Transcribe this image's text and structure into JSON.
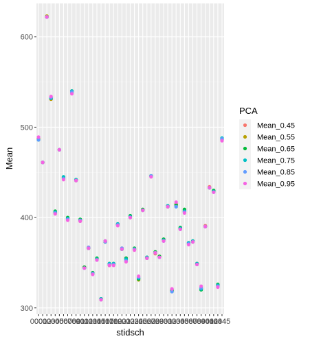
{
  "chart_data": {
    "type": "scatter",
    "xlabel": "stidsch",
    "ylabel": "Mean",
    "y_ticks": [
      300,
      400,
      500,
      600
    ],
    "ylim": [
      293,
      637
    ],
    "x_tick_labels": [
      "0001",
      "0002",
      "0003",
      "0004",
      "0005",
      "0006",
      "0007",
      "0008",
      "0009",
      "0010",
      "0011",
      "0012",
      "0013",
      "0014",
      "0015",
      "0016",
      "0017",
      "0018",
      "0019",
      "0020",
      "0021",
      "0022",
      "0023",
      "0024",
      "0025",
      "0026",
      "0027",
      "0028",
      "0029",
      "0030",
      "0031",
      "0032",
      "0033",
      "0034",
      "0035",
      "0036",
      "0037",
      "0038",
      "0039",
      "0040",
      "0041",
      "0042",
      "0043",
      "0044",
      "0045"
    ],
    "legend": {
      "title": "PCA",
      "position": "right"
    },
    "series": [
      {
        "name": "Mean_0.45",
        "color": "#F8766D",
        "values": [
          487,
          461,
          622,
          531,
          405,
          475,
          444,
          398,
          540,
          441,
          396,
          345,
          367,
          338,
          354,
          310,
          374,
          348,
          349,
          393,
          366,
          355,
          401,
          364,
          333,
          408,
          356,
          446,
          360,
          357,
          376,
          413,
          319,
          415,
          388,
          407,
          372,
          374,
          349,
          322,
          391,
          434,
          429,
          325,
          487
        ]
      },
      {
        "name": "Mean_0.55",
        "color": "#B79F00",
        "values": [
          487,
          461,
          623,
          531,
          406,
          475,
          444,
          399,
          539,
          441,
          397,
          345,
          366,
          338,
          354,
          309,
          373,
          347,
          348,
          392,
          365,
          354,
          400,
          365,
          331,
          408,
          355,
          446,
          361,
          357,
          375,
          412,
          320,
          414,
          388,
          408,
          371,
          373,
          349,
          321,
          390,
          433,
          430,
          325,
          487
        ]
      },
      {
        "name": "Mean_0.65",
        "color": "#00BA38",
        "values": [
          486,
          461,
          622,
          532,
          407,
          475,
          445,
          400,
          540,
          442,
          398,
          345,
          366,
          339,
          355,
          310,
          373,
          349,
          349,
          392,
          365,
          355,
          402,
          366,
          332,
          409,
          356,
          446,
          362,
          357,
          376,
          412,
          319,
          414,
          389,
          409,
          372,
          374,
          349,
          320,
          390,
          433,
          430,
          326,
          487
        ]
      },
      {
        "name": "Mean_0.75",
        "color": "#00BFC4",
        "values": [
          486,
          461,
          622,
          532,
          406,
          475,
          445,
          399,
          540,
          442,
          397,
          344,
          366,
          338,
          354,
          310,
          374,
          349,
          349,
          393,
          365,
          354,
          401,
          365,
          333,
          408,
          356,
          446,
          361,
          356,
          375,
          413,
          318,
          412,
          388,
          407,
          372,
          374,
          349,
          321,
          390,
          433,
          429,
          325,
          488
        ]
      },
      {
        "name": "Mean_0.85",
        "color": "#619CFF",
        "values": [
          486,
          461,
          622,
          533,
          405,
          475,
          443,
          398,
          539,
          441,
          397,
          344,
          367,
          338,
          353,
          309,
          373,
          348,
          348,
          392,
          366,
          352,
          400,
          365,
          334,
          408,
          355,
          446,
          361,
          356,
          374,
          412,
          318,
          412,
          387,
          406,
          371,
          373,
          348,
          322,
          390,
          433,
          428,
          324,
          487
        ]
      },
      {
        "name": "Mean_0.95",
        "color": "#F564E3",
        "values": [
          489,
          461,
          622,
          534,
          404,
          475,
          442,
          397,
          537,
          441,
          396,
          344,
          366,
          337,
          353,
          309,
          374,
          347,
          347,
          391,
          365,
          351,
          400,
          364,
          335,
          408,
          355,
          445,
          361,
          356,
          374,
          412,
          321,
          417,
          387,
          405,
          370,
          373,
          348,
          324,
          390,
          433,
          428,
          323,
          485
        ]
      }
    ]
  }
}
